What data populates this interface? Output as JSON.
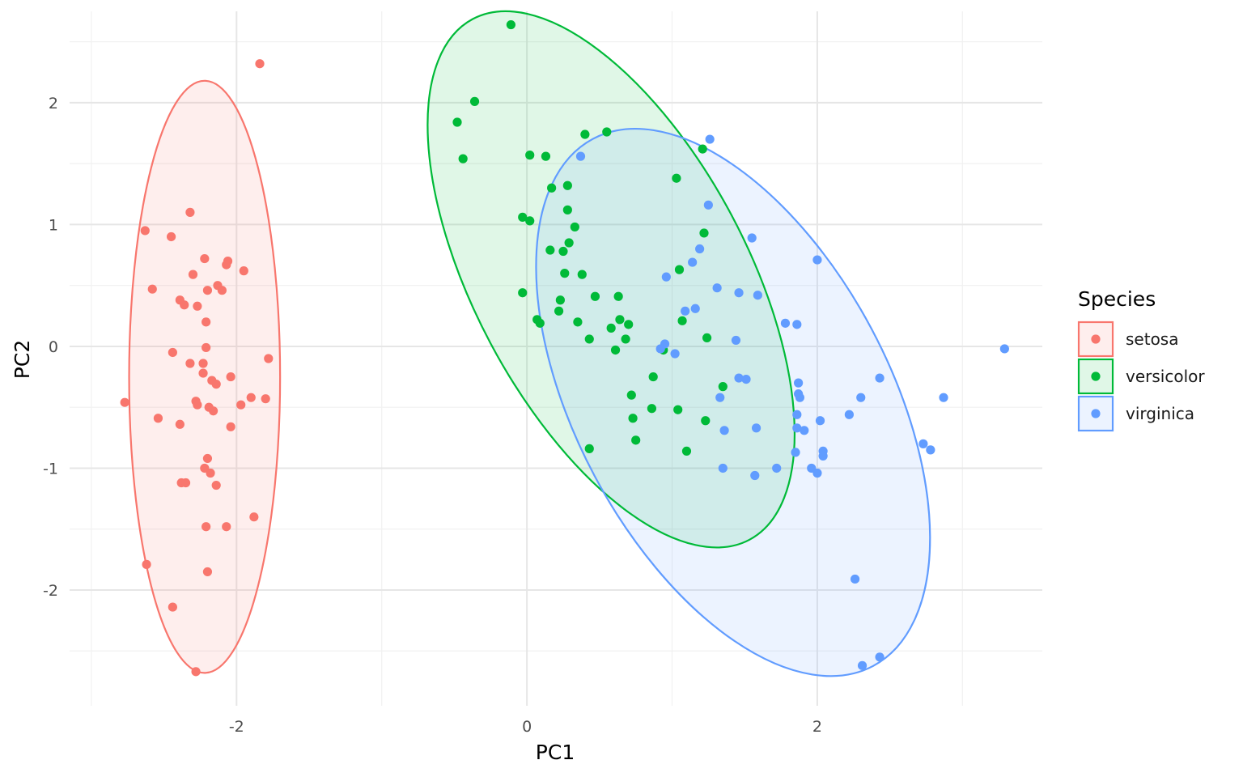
{
  "chart_data": {
    "type": "scatter",
    "xlabel": "PC1",
    "ylabel": "PC2",
    "xlim": [
      -3.15,
      3.55
    ],
    "ylim": [
      -2.95,
      2.75
    ],
    "x_ticks": [
      -2,
      0,
      2
    ],
    "y_ticks": [
      -2,
      -1,
      0,
      1,
      2
    ],
    "grid": true,
    "legend": {
      "title": "Species",
      "position": "right"
    },
    "series": [
      {
        "name": "setosa",
        "color": "#F8766D",
        "ellipse": {
          "cx": -2.22,
          "cy": -0.25,
          "rx": 0.52,
          "ry": 2.43,
          "angle": 0
        },
        "points": [
          [
            -1.84,
            2.32
          ],
          [
            -2.32,
            1.1
          ],
          [
            -2.63,
            0.95
          ],
          [
            -2.45,
            0.9
          ],
          [
            -2.22,
            0.72
          ],
          [
            -2.06,
            0.7
          ],
          [
            -2.07,
            0.67
          ],
          [
            -1.95,
            0.62
          ],
          [
            -2.3,
            0.59
          ],
          [
            -2.13,
            0.5
          ],
          [
            -2.58,
            0.47
          ],
          [
            -2.2,
            0.46
          ],
          [
            -2.1,
            0.46
          ],
          [
            -2.39,
            0.38
          ],
          [
            -2.36,
            0.34
          ],
          [
            -2.27,
            0.33
          ],
          [
            -2.21,
            0.2
          ],
          [
            -2.21,
            -0.01
          ],
          [
            -2.44,
            -0.05
          ],
          [
            -2.23,
            -0.14
          ],
          [
            -2.32,
            -0.14
          ],
          [
            -2.04,
            -0.25
          ],
          [
            -2.23,
            -0.22
          ],
          [
            -2.17,
            -0.28
          ],
          [
            -2.14,
            -0.31
          ],
          [
            -1.9,
            -0.42
          ],
          [
            -1.8,
            -0.43
          ],
          [
            -1.97,
            -0.48
          ],
          [
            -2.28,
            -0.45
          ],
          [
            -2.27,
            -0.48
          ],
          [
            -2.19,
            -0.5
          ],
          [
            -2.16,
            -0.53
          ],
          [
            -1.78,
            -0.1
          ],
          [
            -2.77,
            -0.46
          ],
          [
            -2.54,
            -0.59
          ],
          [
            -2.39,
            -0.64
          ],
          [
            -2.04,
            -0.66
          ],
          [
            -2.2,
            -0.92
          ],
          [
            -2.22,
            -1.0
          ],
          [
            -2.18,
            -1.04
          ],
          [
            -2.38,
            -1.12
          ],
          [
            -2.35,
            -1.12
          ],
          [
            -2.14,
            -1.14
          ],
          [
            -1.88,
            -1.4
          ],
          [
            -2.21,
            -1.48
          ],
          [
            -2.07,
            -1.48
          ],
          [
            -2.62,
            -1.79
          ],
          [
            -2.2,
            -1.85
          ],
          [
            -2.44,
            -2.14
          ],
          [
            -2.28,
            -2.67
          ]
        ]
      },
      {
        "name": "versicolor",
        "color": "#00BA38",
        "ellipse": {
          "cx": 0.58,
          "cy": 0.55,
          "rx": 0.94,
          "ry": 2.42,
          "angle": -28
        },
        "points": [
          [
            -0.11,
            2.64
          ],
          [
            -0.36,
            2.01
          ],
          [
            -0.48,
            1.84
          ],
          [
            -0.44,
            1.54
          ],
          [
            0.55,
            1.76
          ],
          [
            0.4,
            1.74
          ],
          [
            1.21,
            1.62
          ],
          [
            0.02,
            1.57
          ],
          [
            0.13,
            1.56
          ],
          [
            1.03,
            1.38
          ],
          [
            0.28,
            1.32
          ],
          [
            0.17,
            1.3
          ],
          [
            0.28,
            1.12
          ],
          [
            -0.03,
            1.06
          ],
          [
            0.02,
            1.03
          ],
          [
            0.33,
            0.98
          ],
          [
            1.22,
            0.93
          ],
          [
            0.29,
            0.85
          ],
          [
            0.16,
            0.79
          ],
          [
            0.25,
            0.78
          ],
          [
            1.05,
            0.63
          ],
          [
            0.26,
            0.6
          ],
          [
            0.38,
            0.59
          ],
          [
            -0.03,
            0.44
          ],
          [
            0.47,
            0.41
          ],
          [
            0.63,
            0.41
          ],
          [
            0.23,
            0.38
          ],
          [
            0.22,
            0.29
          ],
          [
            0.07,
            0.22
          ],
          [
            0.64,
            0.22
          ],
          [
            0.09,
            0.19
          ],
          [
            0.35,
            0.2
          ],
          [
            1.07,
            0.21
          ],
          [
            0.7,
            0.18
          ],
          [
            0.58,
            0.15
          ],
          [
            0.43,
            0.06
          ],
          [
            0.68,
            0.06
          ],
          [
            1.24,
            0.07
          ],
          [
            0.61,
            -0.03
          ],
          [
            0.94,
            -0.03
          ],
          [
            1.35,
            -0.33
          ],
          [
            0.87,
            -0.25
          ],
          [
            0.72,
            -0.4
          ],
          [
            0.86,
            -0.51
          ],
          [
            1.04,
            -0.52
          ],
          [
            1.23,
            -0.61
          ],
          [
            0.73,
            -0.59
          ],
          [
            0.75,
            -0.77
          ],
          [
            1.1,
            -0.86
          ],
          [
            0.43,
            -0.84
          ]
        ]
      },
      {
        "name": "virginica",
        "color": "#619CFF",
        "ellipse": {
          "cx": 1.42,
          "cy": -0.46,
          "rx": 1.08,
          "ry": 2.45,
          "angle": -28
        },
        "points": [
          [
            1.26,
            1.7
          ],
          [
            0.37,
            1.56
          ],
          [
            1.25,
            1.16
          ],
          [
            1.55,
            0.89
          ],
          [
            1.19,
            0.8
          ],
          [
            2.0,
            0.71
          ],
          [
            1.14,
            0.69
          ],
          [
            0.96,
            0.57
          ],
          [
            1.31,
            0.48
          ],
          [
            1.46,
            0.44
          ],
          [
            1.59,
            0.42
          ],
          [
            1.09,
            0.29
          ],
          [
            1.16,
            0.31
          ],
          [
            1.78,
            0.19
          ],
          [
            1.86,
            0.18
          ],
          [
            1.44,
            0.05
          ],
          [
            0.95,
            0.02
          ],
          [
            0.92,
            -0.02
          ],
          [
            1.02,
            -0.06
          ],
          [
            3.29,
            -0.02
          ],
          [
            1.46,
            -0.26
          ],
          [
            1.51,
            -0.27
          ],
          [
            2.43,
            -0.26
          ],
          [
            1.87,
            -0.3
          ],
          [
            1.87,
            -0.39
          ],
          [
            1.88,
            -0.42
          ],
          [
            1.33,
            -0.42
          ],
          [
            2.3,
            -0.42
          ],
          [
            2.87,
            -0.42
          ],
          [
            2.22,
            -0.56
          ],
          [
            1.86,
            -0.56
          ],
          [
            2.02,
            -0.61
          ],
          [
            1.86,
            -0.67
          ],
          [
            1.91,
            -0.69
          ],
          [
            1.36,
            -0.69
          ],
          [
            1.58,
            -0.67
          ],
          [
            2.04,
            -0.86
          ],
          [
            2.04,
            -0.9
          ],
          [
            1.85,
            -0.87
          ],
          [
            2.73,
            -0.8
          ],
          [
            2.78,
            -0.85
          ],
          [
            1.96,
            -1.0
          ],
          [
            2.0,
            -1.04
          ],
          [
            1.35,
            -1.0
          ],
          [
            1.72,
            -1.0
          ],
          [
            1.57,
            -1.06
          ],
          [
            2.26,
            -1.91
          ],
          [
            2.31,
            -2.62
          ],
          [
            2.43,
            -2.55
          ]
        ]
      }
    ]
  }
}
